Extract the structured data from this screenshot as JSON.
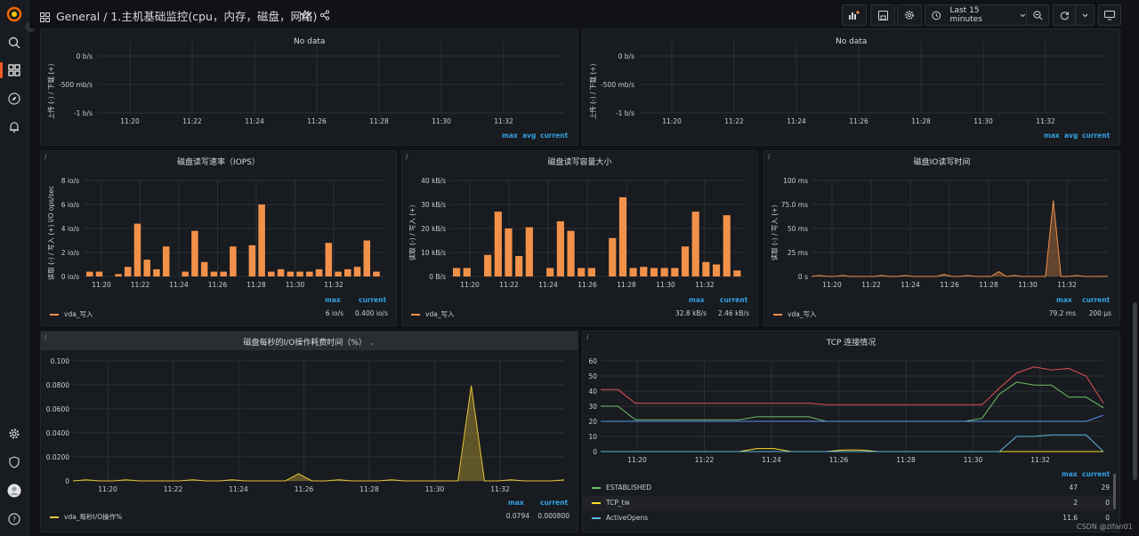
{
  "topbar": {
    "section": "General",
    "title": "/ 1.主机基础监控(cpu，内存，磁盘，网络)",
    "time_range": "Last 15 minutes"
  },
  "colors": {
    "orange": "#ff7f0e",
    "bar": "#f2914a",
    "yellow": "#e8c23a",
    "green": "#73bf69",
    "red": "#f2495c",
    "blue": "#5794f2",
    "cyan": "#8ab8ff"
  },
  "legend_labels": {
    "max": "max",
    "avg": "avg",
    "current": "current"
  },
  "net1": {
    "no_data": "No data",
    "y_ticks": [
      "0 b/s",
      "-500 mb/s",
      "-1 b/s"
    ],
    "ylabel": "上传 (-) / 下载 (+)",
    "x_ticks": [
      "11:20",
      "11:22",
      "11:24",
      "11:26",
      "11:28",
      "11:30",
      "11:32"
    ]
  },
  "net2": {
    "no_data": "No data",
    "y_ticks": [
      "0 b/s",
      "-500 mb/s",
      "-1 b/s"
    ],
    "ylabel": "上传 (-) / 下载 (+)",
    "x_ticks": [
      "11:20",
      "11:22",
      "11:24",
      "11:26",
      "11:28",
      "11:30",
      "11:32"
    ]
  },
  "iops": {
    "title": "磁盘读写速率（IOPS）",
    "ylabel": "读取 (-) / 写入 (+) I/O ops/sec",
    "y_ticks": [
      "8 io/s",
      "6 io/s",
      "4 io/s",
      "2 io/s",
      "0 io/s"
    ],
    "x_ticks": [
      "11:20",
      "11:22",
      "11:24",
      "11:26",
      "11:28",
      "11:30",
      "11:32"
    ],
    "series": "vda_写入",
    "max": "6 io/s",
    "current": "0.400 io/s"
  },
  "bytes": {
    "title": "磁盘读写容量大小",
    "ylabel": "读取 (-) / 写入 (+)",
    "y_ticks": [
      "40 kB/s",
      "30 kB/s",
      "20 kB/s",
      "10 kB/s",
      "0 B/s"
    ],
    "x_ticks": [
      "11:20",
      "11:22",
      "11:24",
      "11:26",
      "11:28",
      "11:30",
      "11:32"
    ],
    "series": "vda_写入",
    "max": "32.8 kB/s",
    "current": "2.46 kB/s"
  },
  "iotime": {
    "title": "磁盘IO读写时间",
    "ylabel": "读取 (-) / 写入 (+)",
    "y_ticks": [
      "100 ms",
      "75.0 ms",
      "50 ms",
      "25 ms",
      "0 s"
    ],
    "x_ticks": [
      "11:20",
      "11:22",
      "11:24",
      "11:26",
      "11:28",
      "11:30",
      "11:32"
    ],
    "series": "vda_写入",
    "max": "79.2 ms",
    "current": "200 µs"
  },
  "ioutil": {
    "title": "磁盘每秒的I/O操作耗费时间（%）",
    "y_ticks": [
      "0.100",
      "0.0800",
      "0.0600",
      "0.0400",
      "0.0200",
      "0"
    ],
    "x_ticks": [
      "11:20",
      "11:22",
      "11:24",
      "11:26",
      "11:28",
      "11:30",
      "11:32"
    ],
    "series": "vda_每秒I/O操作%",
    "max": "0.0794",
    "current": "0.000800"
  },
  "tcp": {
    "title": "TCP 连接情况",
    "y_ticks": [
      "60",
      "50",
      "40",
      "30",
      "20",
      "10",
      "0"
    ],
    "x_ticks": [
      "11:20",
      "11:22",
      "11:24",
      "11:26",
      "11:28",
      "11:30",
      "11:32"
    ],
    "rows": [
      {
        "name": "ESTABLISHED",
        "max": "47",
        "current": "29"
      },
      {
        "name": "TCP_tw",
        "max": "2",
        "current": "0"
      },
      {
        "name": "ActiveOpens",
        "max": "11.6",
        "current": "0"
      }
    ]
  },
  "watermark": "CSDN @zifan01",
  "chart_data": [
    {
      "type": "bar",
      "title": "磁盘读写速率（IOPS）",
      "ylim": [
        0,
        8
      ],
      "series": [
        {
          "name": "vda_写入",
          "values": [
            0.4,
            0.4,
            0,
            0.2,
            0.8,
            4.4,
            1.4,
            0.6,
            2.5,
            0,
            0.4,
            3.8,
            1.2,
            0.4,
            0.4,
            2.5,
            0,
            2.6,
            6,
            0.4,
            0.6,
            0.4,
            0.4,
            0.4,
            0.6,
            2.8,
            0.4,
            0.6,
            0.8,
            3,
            0.4
          ]
        }
      ]
    },
    {
      "type": "bar",
      "title": "磁盘读写容量大小",
      "ylim": [
        0,
        40
      ],
      "series": [
        {
          "name": "vda_写入",
          "values": [
            3.5,
            3.5,
            0,
            9,
            27,
            20,
            8.5,
            20.5,
            0,
            3.5,
            23,
            19,
            3.5,
            3.5,
            0,
            16,
            33,
            3.5,
            4,
            3.5,
            3.5,
            3.5,
            12.5,
            27,
            6,
            5,
            25.5,
            2.5
          ]
        }
      ]
    },
    {
      "type": "line",
      "title": "磁盘IO读写时间",
      "ylim": [
        0,
        100
      ],
      "series": [
        {
          "name": "vda_写入",
          "values": [
            0,
            1,
            0,
            0,
            1,
            0,
            0,
            0,
            0,
            1,
            0,
            0,
            1,
            0,
            0,
            0,
            0,
            2,
            0,
            0,
            1,
            0,
            0,
            0,
            5,
            0,
            1,
            0,
            0,
            0,
            0,
            79.2,
            0,
            0,
            1,
            0,
            0,
            0,
            0.2
          ]
        }
      ]
    },
    {
      "type": "line",
      "title": "磁盘每秒的I/O操作耗费时间（%）",
      "ylim": [
        0,
        0.1
      ],
      "series": [
        {
          "name": "vda_每秒I/O操作%",
          "values": [
            0,
            0.001,
            0,
            0,
            0.001,
            0,
            0,
            0,
            0,
            0.001,
            0,
            0,
            0.001,
            0,
            0,
            0,
            0,
            0.006,
            0,
            0,
            0.001,
            0,
            0,
            0,
            0.001,
            0,
            0,
            0,
            0,
            0,
            0.0794,
            0,
            0,
            0.001,
            0,
            0,
            0,
            0.0008
          ]
        }
      ]
    },
    {
      "type": "line",
      "title": "TCP 连接情况",
      "ylim": [
        0,
        60
      ],
      "series": [
        {
          "name": "ESTABLISHED",
          "values": [
            30,
            30,
            21,
            21,
            21,
            21,
            21,
            21,
            21,
            23,
            23,
            23,
            23,
            20,
            20,
            20,
            20,
            20,
            20,
            20,
            20,
            20,
            22,
            38,
            46,
            44,
            44,
            36,
            36,
            29
          ]
        },
        {
          "name": "TCP_tw",
          "values": [
            0,
            0,
            0,
            0,
            0,
            0,
            0,
            0,
            0,
            2,
            2,
            0,
            0,
            0,
            1,
            1,
            0,
            0,
            0,
            0,
            0,
            0,
            0,
            0,
            0,
            0,
            0,
            0,
            0,
            0
          ]
        },
        {
          "name": "ActiveOpens",
          "values": [
            0,
            0,
            0,
            0,
            0,
            0,
            0,
            0,
            0,
            0,
            0,
            0,
            0,
            0,
            0,
            0,
            0,
            0,
            0,
            0,
            0,
            0,
            0,
            0,
            10,
            10,
            11,
            11,
            11,
            0
          ]
        },
        {
          "name": "",
          "values": [
            41,
            41,
            32,
            32,
            32,
            32,
            32,
            32,
            32,
            32,
            32,
            32,
            32,
            31,
            31,
            31,
            31,
            31,
            31,
            31,
            31,
            31,
            31,
            42,
            52,
            56,
            54,
            55,
            50,
            32
          ]
        },
        {
          "name": "",
          "values": [
            20,
            20,
            20,
            20,
            20,
            20,
            20,
            20,
            20,
            20,
            20,
            20,
            20,
            20,
            20,
            20,
            20,
            20,
            20,
            20,
            20,
            20,
            20,
            20,
            20,
            20,
            20,
            20,
            20,
            24
          ]
        }
      ]
    }
  ]
}
